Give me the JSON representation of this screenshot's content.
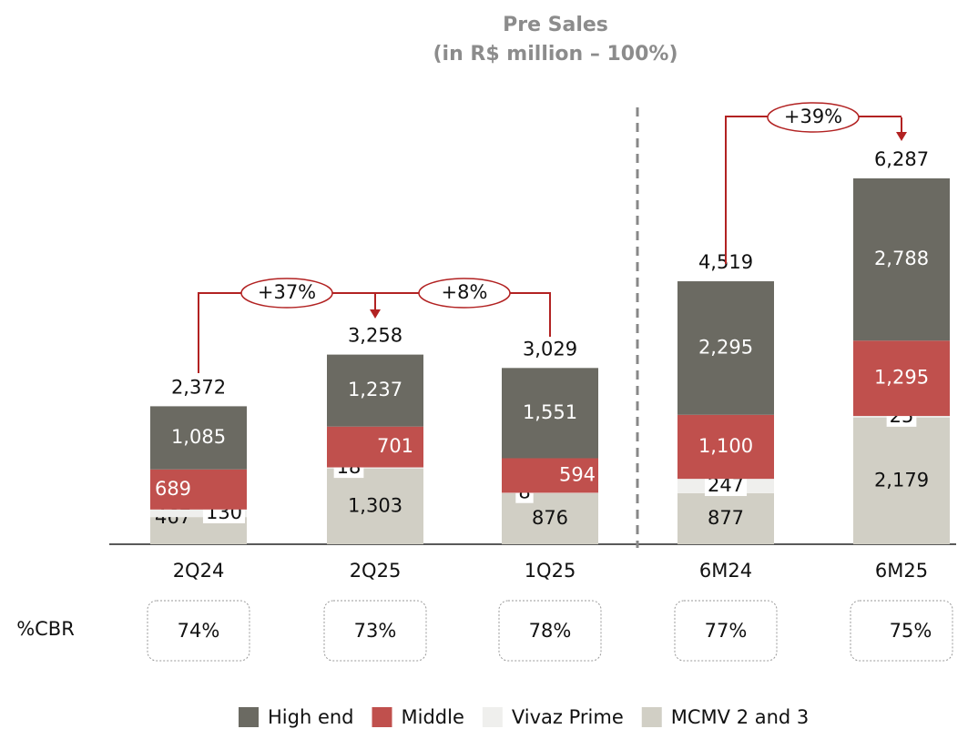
{
  "chart_data": {
    "type": "stacked_bar",
    "title": "Pre Sales",
    "subtitle": "(in R$ million – 100%)",
    "categories": [
      "2Q24",
      "2Q25",
      "1Q25",
      "6M24",
      "6M25"
    ],
    "series": [
      {
        "name": "MCMV 2 and 3",
        "color": "#d1cfc5",
        "values": [
          467,
          1303,
          876,
          877,
          2179
        ],
        "value_labels": [
          "467",
          "1,303",
          "876",
          "877",
          "2,179"
        ]
      },
      {
        "name": "Vivaz Prime",
        "color": "#efefed",
        "values": [
          130,
          18,
          8,
          247,
          25
        ]
      },
      {
        "name": "Middle",
        "color": "#c0504d",
        "values": [
          689,
          701,
          594,
          1100,
          1295
        ],
        "value_labels": [
          "689",
          "701",
          "594",
          "1,100",
          "1,295"
        ]
      },
      {
        "name": "High end",
        "color": "#6b6a62",
        "values": [
          1085,
          1237,
          1551,
          2295,
          2788
        ],
        "value_labels": [
          "1,085",
          "1,237",
          "1,551",
          "2,295",
          "2,788"
        ]
      }
    ],
    "totals": [
      2372,
      3258,
      3029,
      4519,
      6287
    ],
    "total_labels": [
      "2,372",
      "3,258",
      "3,029",
      "4,519",
      "6,287"
    ],
    "annotations": [
      "+37%",
      "+8%",
      "+39%"
    ],
    "cbr": {
      "label": "%CBR",
      "values": [
        74,
        73,
        78,
        77,
        75
      ],
      "value_labels": [
        "74%",
        "73%",
        "78%",
        "77%",
        "75%"
      ]
    }
  }
}
